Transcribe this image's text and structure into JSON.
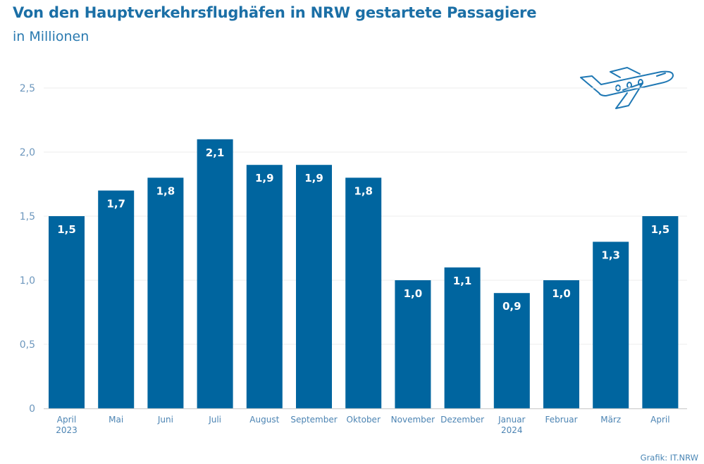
{
  "header": {
    "title": "Von den Hauptverkehrsflughäfen in NRW gestartete Passagiere",
    "subtitle": "in Millionen"
  },
  "footer": {
    "credit": "Grafik: IT.NRW"
  },
  "decoration": {
    "icon": "airplane-icon"
  },
  "colors": {
    "bar": "#00659f",
    "title": "#1b6fa6",
    "grid": "#ececec",
    "axis": "#cfcfcf"
  },
  "chart_data": {
    "type": "bar",
    "title": "Von den Hauptverkehrsflughäfen in NRW gestartete Passagiere",
    "subtitle": "in Millionen",
    "xlabel": "",
    "ylabel": "in Millionen",
    "ylim": [
      0,
      2.5
    ],
    "yticks": [
      0,
      0.5,
      1.0,
      1.5,
      2.0,
      2.5
    ],
    "ytick_labels": [
      "0",
      "0,5",
      "1,0",
      "1,5",
      "2,0",
      "2,5"
    ],
    "grid": true,
    "legend": "none",
    "categories": [
      [
        "April",
        "2023"
      ],
      [
        "Mai"
      ],
      [
        "Juni"
      ],
      [
        "Juli"
      ],
      [
        "August"
      ],
      [
        "September"
      ],
      [
        "Oktober"
      ],
      [
        "November"
      ],
      [
        "Dezember"
      ],
      [
        "Januar",
        "2024"
      ],
      [
        "Februar"
      ],
      [
        "März"
      ],
      [
        "April"
      ]
    ],
    "values": [
      1.5,
      1.7,
      1.8,
      2.1,
      1.9,
      1.9,
      1.8,
      1.0,
      1.1,
      0.9,
      1.0,
      1.3,
      1.5
    ],
    "data_labels": [
      "1,5",
      "1,7",
      "1,8",
      "2,1",
      "1,9",
      "1,9",
      "1,8",
      "1,0",
      "1,1",
      "0,9",
      "1,0",
      "1,3",
      "1,5"
    ]
  }
}
